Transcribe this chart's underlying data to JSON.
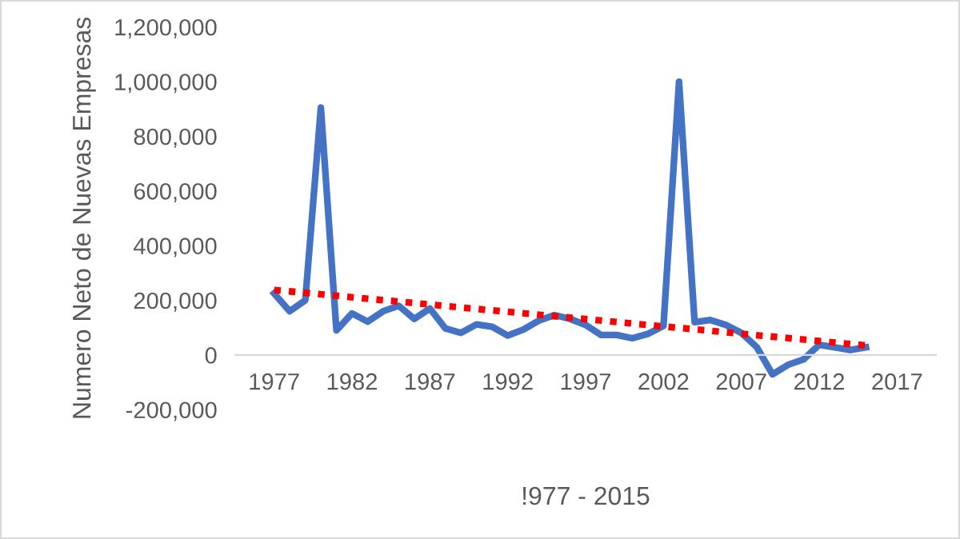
{
  "chart_data": {
    "type": "line",
    "xlabel": "!977 - 2015",
    "ylabel": "Numero Neto de Nuevas Empresas",
    "xlim": [
      1974.5,
      2019.5
    ],
    "xticks": [
      1977,
      1982,
      1987,
      1992,
      1997,
      2002,
      2007,
      2012,
      2017
    ],
    "ylim": [
      -200000,
      1200000
    ],
    "yticks": [
      {
        "value": -200000,
        "label": "-200,000"
      },
      {
        "value": 0,
        "label": "0"
      },
      {
        "value": 200000,
        "label": "200,000"
      },
      {
        "value": 400000,
        "label": "400,000"
      },
      {
        "value": 600000,
        "label": "600,000"
      },
      {
        "value": 800000,
        "label": "800,000"
      },
      {
        "value": 1000000,
        "label": "1,000,000"
      },
      {
        "value": 1200000,
        "label": "1,200,000"
      }
    ],
    "grid": false,
    "legend": false,
    "series": [
      {
        "color": "#4472c4",
        "line_style": "solid",
        "x": [
          1977,
          1978,
          1979,
          1980,
          1981,
          1982,
          1983,
          1984,
          1985,
          1986,
          1987,
          1988,
          1989,
          1990,
          1991,
          1992,
          1993,
          1994,
          1995,
          1996,
          1997,
          1998,
          1999,
          2000,
          2001,
          2002,
          2003,
          2004,
          2005,
          2006,
          2007,
          2008,
          2009,
          2010,
          2011,
          2012,
          2013,
          2014,
          2015
        ],
        "values": [
          225000,
          160000,
          200000,
          905000,
          90000,
          152000,
          122000,
          160000,
          180000,
          132000,
          170000,
          97000,
          81000,
          112000,
          103000,
          71000,
          93000,
          126000,
          146000,
          132000,
          110000,
          73000,
          73000,
          61000,
          77000,
          106000,
          1000000,
          120000,
          128000,
          110000,
          81000,
          28000,
          -71000,
          -36000,
          -16000,
          37000,
          28000,
          18000,
          28000
        ]
      },
      {
        "type": "line",
        "color": "#ff0000",
        "line_style": "dotted",
        "x": [
          1977,
          2015
        ],
        "values": [
          238000,
          35000
        ]
      }
    ]
  }
}
